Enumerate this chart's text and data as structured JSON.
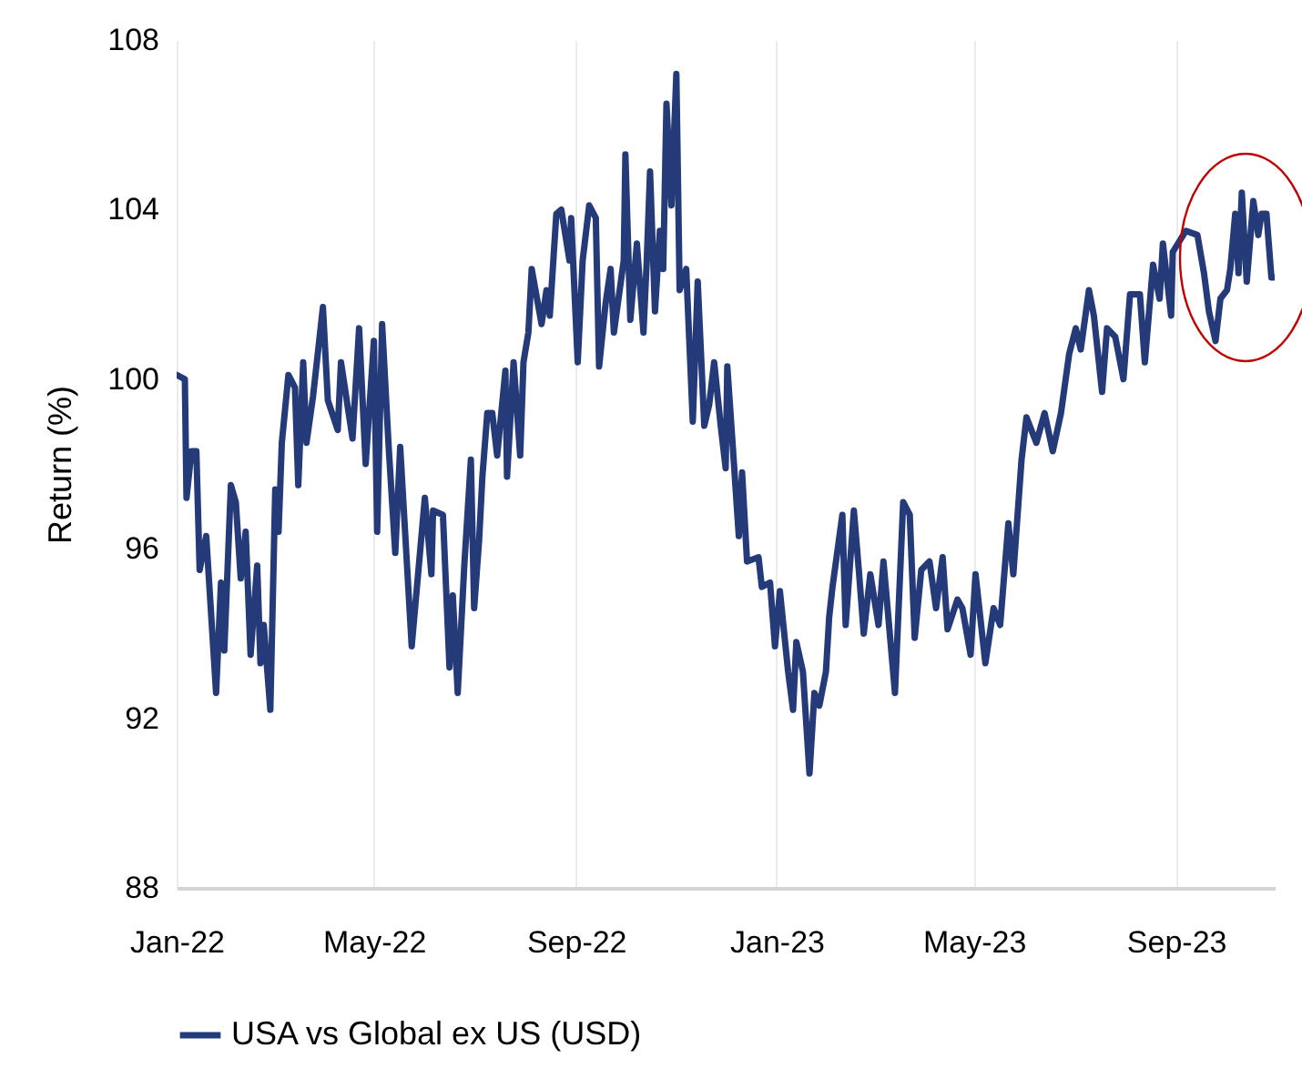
{
  "chart_data": {
    "type": "line",
    "ylabel": "Return (%)",
    "legend": "bottom",
    "grid": "x",
    "xlim": [
      "2022-01-01",
      "2023-10-31"
    ],
    "xticks": [
      {
        "value": "2022-01-01",
        "label": "Jan-22"
      },
      {
        "value": "2022-05-01",
        "label": "May-22"
      },
      {
        "value": "2022-09-01",
        "label": "Sep-22"
      },
      {
        "value": "2023-01-01",
        "label": "Jan-23"
      },
      {
        "value": "2023-05-01",
        "label": "May-23"
      },
      {
        "value": "2023-09-01",
        "label": "Sep-23"
      }
    ],
    "ylim": [
      88,
      108
    ],
    "yticks": [
      88,
      92,
      96,
      100,
      104,
      108
    ],
    "x": [
      "2022-01-01",
      "2022-01-06",
      "2022-01-07",
      "2022-01-10",
      "2022-01-13",
      "2022-01-15",
      "2022-01-19",
      "2022-01-25",
      "2022-01-28",
      "2022-01-30",
      "2022-02-03",
      "2022-02-06",
      "2022-02-09",
      "2022-02-12",
      "2022-02-15",
      "2022-02-19",
      "2022-02-21",
      "2022-02-23",
      "2022-02-27",
      "2022-03-02",
      "2022-03-04",
      "2022-03-06",
      "2022-03-10",
      "2022-03-14",
      "2022-03-16",
      "2022-03-19",
      "2022-03-21",
      "2022-03-25",
      "2022-03-31",
      "2022-04-03",
      "2022-04-09",
      "2022-04-11",
      "2022-04-18",
      "2022-04-22",
      "2022-04-26",
      "2022-05-01",
      "2022-05-03",
      "2022-05-06",
      "2022-05-10",
      "2022-05-14",
      "2022-05-17",
      "2022-05-24",
      "2022-06-01",
      "2022-06-05",
      "2022-06-06",
      "2022-06-12",
      "2022-06-16",
      "2022-06-18",
      "2022-06-21",
      "2022-06-25",
      "2022-06-29",
      "2022-07-01",
      "2022-07-04",
      "2022-07-06",
      "2022-07-09",
      "2022-07-12",
      "2022-07-15",
      "2022-07-20",
      "2022-07-21",
      "2022-07-25",
      "2022-07-29",
      "2022-07-31",
      "2022-08-03",
      "2022-08-05",
      "2022-08-11",
      "2022-08-14",
      "2022-08-16",
      "2022-08-20",
      "2022-08-23",
      "2022-08-28",
      "2022-08-29",
      "2022-09-02",
      "2022-09-05",
      "2022-09-09",
      "2022-09-13",
      "2022-09-15",
      "2022-09-19",
      "2022-09-22",
      "2022-09-24",
      "2022-09-30",
      "2022-10-01",
      "2022-10-04",
      "2022-10-08",
      "2022-10-12",
      "2022-10-14",
      "2022-10-16",
      "2022-10-19",
      "2022-10-22",
      "2022-10-24",
      "2022-10-26",
      "2022-10-29",
      "2022-11-01",
      "2022-11-03",
      "2022-11-07",
      "2022-11-11",
      "2022-11-14",
      "2022-11-18",
      "2022-11-21",
      "2022-11-24",
      "2022-11-28",
      "2022-12-01",
      "2022-12-02",
      "2022-12-05",
      "2022-12-09",
      "2022-12-11",
      "2022-12-14",
      "2022-12-21",
      "2022-12-23",
      "2022-12-28",
      "2022-12-31",
      "2023-01-03",
      "2023-01-08",
      "2023-01-11",
      "2023-01-13",
      "2023-01-17",
      "2023-01-21",
      "2023-01-24",
      "2023-01-27",
      "2023-01-31",
      "2023-02-02",
      "2023-02-04",
      "2023-02-10",
      "2023-02-12",
      "2023-02-17",
      "2023-02-20",
      "2023-02-23",
      "2023-02-27",
      "2023-03-04",
      "2023-03-07",
      "2023-03-14",
      "2023-03-19",
      "2023-03-23",
      "2023-03-26",
      "2023-03-30",
      "2023-04-04",
      "2023-04-08",
      "2023-04-12",
      "2023-04-15",
      "2023-04-21",
      "2023-04-24",
      "2023-04-29",
      "2023-05-02",
      "2023-05-08",
      "2023-05-13",
      "2023-05-17",
      "2023-05-22",
      "2023-05-25",
      "2023-05-30",
      "2023-06-02",
      "2023-06-08",
      "2023-06-13",
      "2023-06-18",
      "2023-06-23",
      "2023-06-28",
      "2023-07-02",
      "2023-07-05",
      "2023-07-10",
      "2023-07-13",
      "2023-07-18",
      "2023-07-21",
      "2023-07-26",
      "2023-07-31",
      "2023-08-04",
      "2023-08-10",
      "2023-08-13",
      "2023-08-18",
      "2023-08-22",
      "2023-08-24",
      "2023-08-29",
      "2023-08-30",
      "2023-09-07",
      "2023-09-14",
      "2023-09-18",
      "2023-09-21",
      "2023-09-25",
      "2023-09-28",
      "2023-10-02",
      "2023-10-04",
      "2023-10-07",
      "2023-10-09",
      "2023-10-11",
      "2023-10-14",
      "2023-10-18",
      "2023-10-21",
      "2023-10-23",
      "2023-10-26",
      "2023-10-29",
      "2023-10-31"
    ],
    "series": [
      {
        "name": "USA vs Global ex US (USD)",
        "color": "#253a78",
        "values": [
          100.1,
          100.0,
          97.2,
          98.3,
          98.3,
          95.5,
          96.3,
          92.6,
          95.2,
          93.6,
          97.5,
          97.1,
          95.3,
          96.4,
          93.5,
          95.6,
          93.3,
          94.2,
          92.2,
          97.4,
          96.4,
          98.5,
          100.1,
          99.8,
          97.5,
          100.4,
          98.5,
          99.6,
          101.7,
          99.5,
          98.8,
          100.4,
          98.6,
          101.2,
          98.0,
          100.9,
          96.4,
          101.3,
          98.4,
          95.9,
          98.4,
          93.7,
          97.2,
          95.4,
          96.9,
          96.8,
          93.2,
          94.9,
          92.6,
          95.6,
          98.1,
          94.6,
          96.2,
          97.7,
          99.2,
          99.2,
          98.2,
          100.2,
          97.7,
          100.4,
          98.2,
          100.4,
          101.1,
          102.6,
          101.3,
          102.1,
          101.5,
          103.9,
          104.0,
          102.8,
          103.8,
          100.4,
          102.8,
          104.1,
          103.8,
          100.3,
          101.8,
          102.6,
          101.1,
          102.8,
          105.3,
          101.4,
          103.2,
          101.1,
          102.8,
          104.9,
          101.6,
          103.5,
          102.6,
          106.5,
          104.1,
          107.2,
          102.1,
          102.6,
          99.0,
          102.3,
          98.9,
          99.4,
          100.4,
          98.9,
          97.9,
          100.3,
          98.6,
          96.3,
          97.8,
          95.7,
          95.8,
          95.1,
          95.2,
          93.7,
          95.0,
          93.1,
          92.2,
          93.8,
          93.1,
          90.7,
          92.6,
          92.3,
          93.1,
          94.4,
          95.1,
          96.8,
          94.2,
          96.9,
          95.5,
          94.0,
          95.4,
          94.2,
          95.7,
          92.6,
          97.1,
          96.8,
          93.9,
          95.5,
          95.7,
          94.6,
          95.8,
          94.1,
          94.8,
          94.6,
          93.5,
          95.4,
          93.3,
          94.6,
          94.2,
          96.6,
          95.4,
          98.1,
          99.1,
          98.5,
          99.2,
          98.3,
          99.2,
          100.6,
          101.2,
          100.7,
          102.1,
          101.5,
          99.7,
          101.2,
          101.0,
          100.0,
          102.0,
          102.0,
          100.4,
          102.7,
          101.9,
          103.2,
          101.5,
          103.0,
          103.5,
          103.4,
          102.5,
          101.6,
          100.9,
          101.9,
          102.1,
          102.6,
          103.9,
          102.5,
          104.4,
          102.3,
          104.2,
          103.4,
          103.9,
          103.9,
          102.4,
          102.4
        ]
      }
    ]
  }
}
